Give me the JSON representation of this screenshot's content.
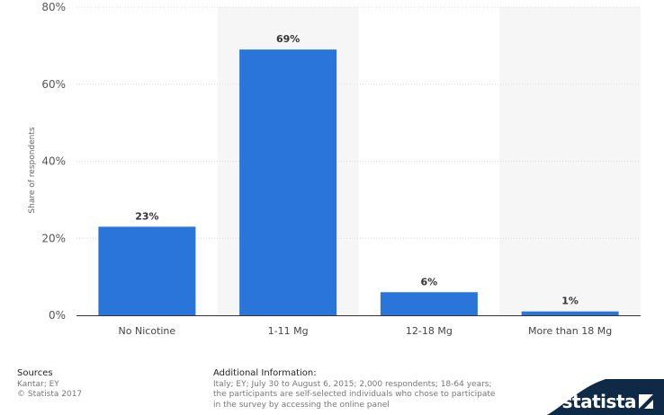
{
  "chart_data": {
    "type": "bar",
    "categories": [
      "No Nicotine",
      "1-11 Mg",
      "12-18 Mg",
      "More than 18 Mg"
    ],
    "values": [
      23,
      69,
      6,
      1
    ],
    "value_labels": [
      "23%",
      "69%",
      "6%",
      "1%"
    ],
    "ylabel": "Share of respondents",
    "yticks": [
      0,
      20,
      40,
      60,
      80
    ],
    "ytick_labels": [
      "0%",
      "20%",
      "40%",
      "60%",
      "80%"
    ],
    "ylim": [
      0,
      80
    ],
    "grid": true,
    "bar_color": "#2a75d9"
  },
  "footer": {
    "sources_title": "Sources",
    "sources_line1": "Kantar; EY",
    "sources_line2": "© Statista 2017",
    "info_title": "Additional Information:",
    "info_text": "Italy; EY; July 30 to August 6, 2015; 2,000 respondents; 18-64 years; the participants are self-selected individuals who chose to participate in the survey by accessing the online panel"
  },
  "logo": {
    "text": "statista",
    "color": "#0e2a47"
  }
}
